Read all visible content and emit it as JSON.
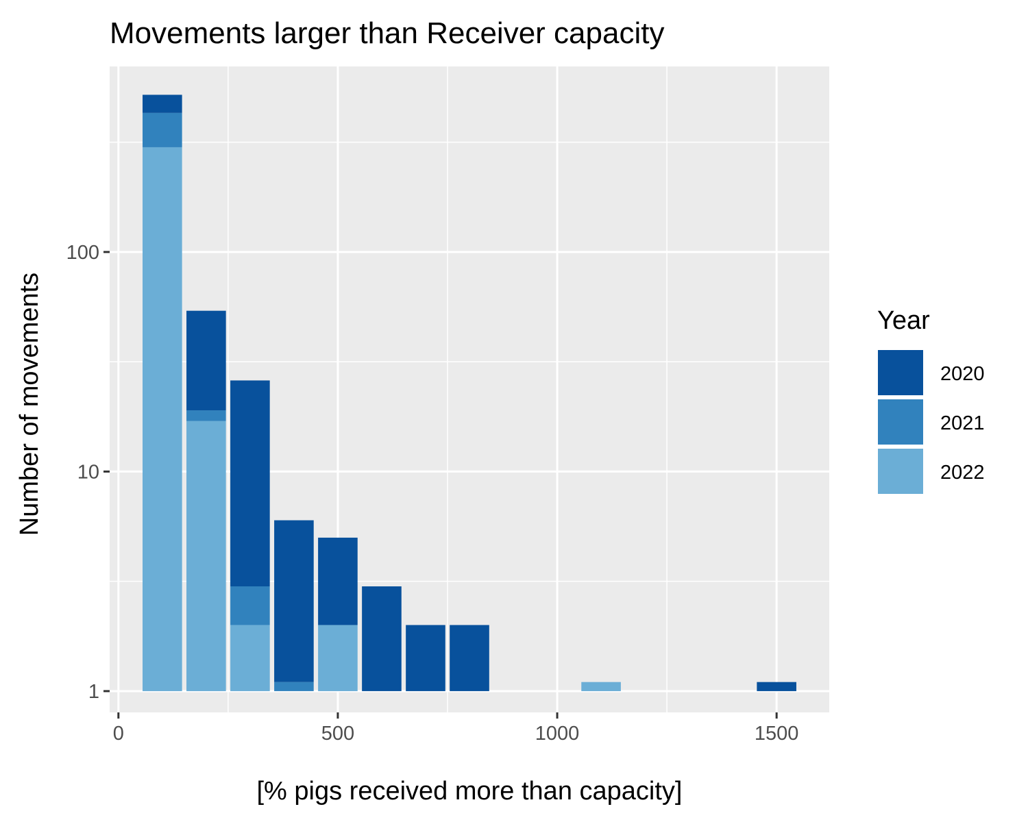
{
  "chart_data": {
    "type": "bar",
    "stacked": true,
    "title": "Movements larger than Receiver capacity",
    "xlabel": "[% pigs received more than capacity]",
    "ylabel": "Number of movements",
    "y_scale": "log10",
    "xlim": [
      -20,
      1620
    ],
    "ylim": [
      0.8,
      700
    ],
    "x_ticks": [
      {
        "value": 0,
        "label": "0"
      },
      {
        "value": 500,
        "label": "500"
      },
      {
        "value": 1000,
        "label": "1000"
      },
      {
        "value": 1500,
        "label": "1500"
      }
    ],
    "y_ticks": [
      {
        "value": 1,
        "label": "1"
      },
      {
        "value": 10,
        "label": "10"
      },
      {
        "value": 100,
        "label": "100"
      }
    ],
    "grid": true,
    "bin_width": 100,
    "bins": [
      {
        "x": 100,
        "cumulative": {
          "2022": 300,
          "2021": 430,
          "2020": 520
        }
      },
      {
        "x": 200,
        "cumulative": {
          "2022": 17,
          "2021": 19,
          "2020": 54
        }
      },
      {
        "x": 300,
        "cumulative": {
          "2022": 2,
          "2021": 3,
          "2020": 26
        }
      },
      {
        "x": 400,
        "cumulative": {
          "2022": 1,
          "2021": 1.1,
          "2020": 6
        }
      },
      {
        "x": 500,
        "cumulative": {
          "2022": 2,
          "2021": 2,
          "2020": 5
        }
      },
      {
        "x": 600,
        "cumulative": {
          "2022": 1,
          "2021": 1,
          "2020": 3
        }
      },
      {
        "x": 700,
        "cumulative": {
          "2022": 1,
          "2021": 1,
          "2020": 2
        }
      },
      {
        "x": 800,
        "cumulative": {
          "2022": 1,
          "2021": 1,
          "2020": 2
        }
      },
      {
        "x": 1100,
        "cumulative": {
          "2022": 1.1,
          "2021": 1.1,
          "2020": 1.1
        }
      },
      {
        "x": 1500,
        "cumulative": {
          "2022": 1,
          "2021": 1,
          "2020": 1.1
        }
      }
    ],
    "series": [
      {
        "name": "2020",
        "color": "#08519c"
      },
      {
        "name": "2021",
        "color": "#3182bd"
      },
      {
        "name": "2022",
        "color": "#6baed6"
      }
    ],
    "legend": {
      "title": "Year",
      "position": "right"
    },
    "panel_background": "#ebebeb",
    "grid_color": "#ffffff"
  }
}
